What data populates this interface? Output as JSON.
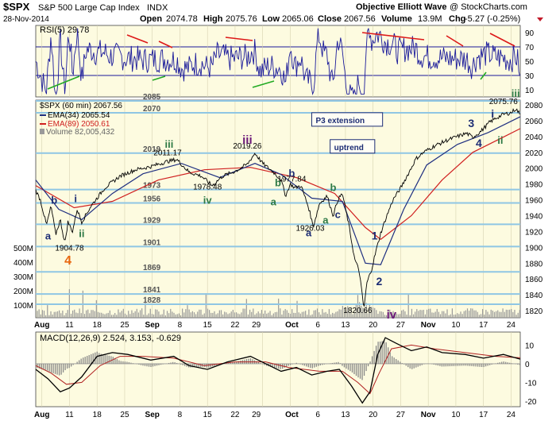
{
  "header": {
    "symbol": "$SPX",
    "name": "S&P 500 Large Cap Index",
    "exchange": "INDX",
    "date": "28-Nov-2014",
    "source": "Objective Elliott Wave",
    "brand": "@ StockCharts.com",
    "open_label": "Open",
    "open": "2074.78",
    "high_label": "High",
    "high": "2075.76",
    "low_label": "Low",
    "low": "2065.06",
    "close_label": "Close",
    "close": "2067.56",
    "volume_label": "Volume",
    "volume": "13.9M",
    "chg_label": "Chg",
    "chg": "-5.27 (-0.25%)"
  },
  "colors": {
    "panel_bg": "#fdfbe0",
    "price": "#000000",
    "ema34": "#1f2f80",
    "ema89": "#d02020",
    "rsi": "#1a1a9a",
    "hline": "#8fc6e4",
    "wave_purple": "#6b1878",
    "wave_navy": "#1d2d74",
    "wave_green": "#2e7a46",
    "wave_orange": "#e8660c",
    "trend_red": "#dd1818",
    "trend_green": "#22aa22"
  },
  "chart_data": [
    {
      "type": "line",
      "panel": "rsi",
      "legend": "RSI(5) 29.78",
      "ylim": [
        0,
        100
      ],
      "ticks": [
        10,
        30,
        50,
        70,
        90
      ],
      "threshold_lines": [
        30,
        70
      ]
    },
    {
      "type": "line",
      "panel": "price",
      "interval": "60 min",
      "ylim": [
        1811,
        2086
      ],
      "y_ticks": [
        1820,
        1840,
        1860,
        1880,
        1900,
        1920,
        1940,
        1960,
        1980,
        2000,
        2020,
        2040,
        2060,
        2080
      ],
      "x_ticks": [
        "Aug",
        "11",
        "18",
        "25",
        "Sep",
        "8",
        "15",
        "22",
        "29",
        "Oct",
        "6",
        "13",
        "20",
        "27",
        "Nov",
        "10",
        "17",
        "24"
      ],
      "legend": {
        "price": "$SPX (60 min) 2067.56",
        "ema34": "EMA(34) 2065.54",
        "ema89": "EMA(89) 2050.61",
        "volume": "Volume 82,005,432"
      },
      "volume_ticks": [
        "500M",
        "400M",
        "300M",
        "200M",
        "100M"
      ],
      "levels": [
        2085,
        2070,
        2019,
        1973,
        1956,
        1929,
        1901,
        1869,
        1841,
        1828
      ],
      "points": [
        {
          "t": 0,
          "v": 1972
        },
        {
          "t": 3,
          "v": 1960
        },
        {
          "t": 7,
          "v": 1928
        },
        {
          "t": 10,
          "v": 1952
        },
        {
          "t": 13,
          "v": 1916
        },
        {
          "t": 16,
          "v": 1935
        },
        {
          "t": 19,
          "v": 1905
        },
        {
          "t": 21,
          "v": 1932
        },
        {
          "t": 24,
          "v": 1920
        },
        {
          "t": 27,
          "v": 1948
        },
        {
          "t": 30,
          "v": 1932
        },
        {
          "t": 36,
          "v": 1952
        },
        {
          "t": 45,
          "v": 1975
        },
        {
          "t": 55,
          "v": 1990
        },
        {
          "t": 65,
          "v": 1998
        },
        {
          "t": 75,
          "v": 2002
        },
        {
          "t": 85,
          "v": 2008
        },
        {
          "t": 92,
          "v": 2011
        },
        {
          "t": 100,
          "v": 1995
        },
        {
          "t": 108,
          "v": 1990
        },
        {
          "t": 115,
          "v": 1978
        },
        {
          "t": 122,
          "v": 1990
        },
        {
          "t": 130,
          "v": 1996
        },
        {
          "t": 138,
          "v": 2005
        },
        {
          "t": 143,
          "v": 2019
        },
        {
          "t": 148,
          "v": 2006
        },
        {
          "t": 155,
          "v": 1995
        },
        {
          "t": 160,
          "v": 1985
        },
        {
          "t": 163,
          "v": 1965
        },
        {
          "t": 166,
          "v": 1980
        },
        {
          "t": 169,
          "v": 1975
        },
        {
          "t": 173,
          "v": 1978
        },
        {
          "t": 178,
          "v": 1950
        },
        {
          "t": 181,
          "v": 1926
        },
        {
          "t": 185,
          "v": 1955
        },
        {
          "t": 190,
          "v": 1965
        },
        {
          "t": 194,
          "v": 1940
        },
        {
          "t": 197,
          "v": 1960
        },
        {
          "t": 200,
          "v": 1968
        },
        {
          "t": 204,
          "v": 1930
        },
        {
          "t": 208,
          "v": 1885
        },
        {
          "t": 211,
          "v": 1870
        },
        {
          "t": 214,
          "v": 1822
        },
        {
          "t": 216,
          "v": 1855
        },
        {
          "t": 219,
          "v": 1872
        },
        {
          "t": 222,
          "v": 1896
        },
        {
          "t": 225,
          "v": 1918
        },
        {
          "t": 229,
          "v": 1940
        },
        {
          "t": 233,
          "v": 1960
        },
        {
          "t": 238,
          "v": 1975
        },
        {
          "t": 243,
          "v": 1993
        },
        {
          "t": 248,
          "v": 2012
        },
        {
          "t": 253,
          "v": 2020
        },
        {
          "t": 260,
          "v": 2028
        },
        {
          "t": 268,
          "v": 2035
        },
        {
          "t": 275,
          "v": 2040
        },
        {
          "t": 281,
          "v": 2044
        },
        {
          "t": 285,
          "v": 2039
        },
        {
          "t": 290,
          "v": 2046
        },
        {
          "t": 296,
          "v": 2058
        },
        {
          "t": 300,
          "v": 2063
        },
        {
          "t": 305,
          "v": 2068
        },
        {
          "t": 310,
          "v": 2070
        },
        {
          "t": 313,
          "v": 2075
        },
        {
          "t": 316,
          "v": 2068
        }
      ],
      "ema34": [
        {
          "t": 0,
          "v": 1985
        },
        {
          "t": 15,
          "v": 1948
        },
        {
          "t": 30,
          "v": 1935
        },
        {
          "t": 50,
          "v": 1968
        },
        {
          "t": 70,
          "v": 1993
        },
        {
          "t": 95,
          "v": 2006
        },
        {
          "t": 120,
          "v": 1988
        },
        {
          "t": 143,
          "v": 2006
        },
        {
          "t": 160,
          "v": 1992
        },
        {
          "t": 180,
          "v": 1962
        },
        {
          "t": 200,
          "v": 1958
        },
        {
          "t": 215,
          "v": 1880
        },
        {
          "t": 225,
          "v": 1878
        },
        {
          "t": 240,
          "v": 1948
        },
        {
          "t": 255,
          "v": 2004
        },
        {
          "t": 275,
          "v": 2030
        },
        {
          "t": 295,
          "v": 2045
        },
        {
          "t": 316,
          "v": 2065
        }
      ],
      "ema89": [
        {
          "t": 0,
          "v": 1978
        },
        {
          "t": 25,
          "v": 1950
        },
        {
          "t": 50,
          "v": 1958
        },
        {
          "t": 80,
          "v": 1985
        },
        {
          "t": 110,
          "v": 1998
        },
        {
          "t": 140,
          "v": 2001
        },
        {
          "t": 170,
          "v": 1988
        },
        {
          "t": 195,
          "v": 1968
        },
        {
          "t": 215,
          "v": 1925
        },
        {
          "t": 225,
          "v": 1910
        },
        {
          "t": 245,
          "v": 1940
        },
        {
          "t": 265,
          "v": 1985
        },
        {
          "t": 285,
          "v": 2020
        },
        {
          "t": 316,
          "v": 2050
        }
      ],
      "price_annotations": [
        {
          "text": "1904.78",
          "t": 22,
          "v": 1896
        },
        {
          "text": "2011.17",
          "t": 86,
          "v": 2016
        },
        {
          "text": "1978.48",
          "t": 112,
          "v": 1973
        },
        {
          "text": "2019.26",
          "t": 138,
          "v": 2025
        },
        {
          "text": "1977.84",
          "t": 167,
          "v": 1983
        },
        {
          "text": "1926.03",
          "t": 179,
          "v": 1921
        },
        {
          "text": "1820.66",
          "t": 210,
          "v": 1817
        },
        {
          "text": "2075.76",
          "t": 305,
          "v": 2081
        }
      ],
      "wave_labels": [
        {
          "text": "b",
          "t": 12,
          "v": 1955,
          "color": "wave_navy",
          "size": 13
        },
        {
          "text": "a",
          "t": 8,
          "v": 1910,
          "color": "wave_navy",
          "size": 13
        },
        {
          "text": "i",
          "t": 26,
          "v": 1957,
          "color": "wave_navy",
          "size": 13
        },
        {
          "text": "ii",
          "t": 30,
          "v": 1913,
          "color": "wave_green",
          "size": 13
        },
        {
          "text": "4",
          "t": 21,
          "v": 1878,
          "color": "wave_orange",
          "size": 16
        },
        {
          "text": "iii",
          "t": 87,
          "v": 2026,
          "color": "wave_green",
          "size": 13
        },
        {
          "text": "iv",
          "t": 112,
          "v": 1955,
          "color": "wave_green",
          "size": 13
        },
        {
          "text": "iii",
          "t": 138,
          "v": 2031,
          "color": "wave_purple",
          "size": 15
        },
        {
          "text": "b",
          "t": 167,
          "v": 1989,
          "color": "wave_navy",
          "size": 13
        },
        {
          "text": "b",
          "t": 158,
          "v": 1977,
          "color": "wave_green",
          "size": 13
        },
        {
          "text": "a",
          "t": 155,
          "v": 1953,
          "color": "wave_green",
          "size": 13
        },
        {
          "text": "a",
          "t": 178,
          "v": 1914,
          "color": "wave_navy",
          "size": 13
        },
        {
          "text": "b",
          "t": 194,
          "v": 1971,
          "color": "wave_green",
          "size": 13
        },
        {
          "text": "a",
          "t": 189,
          "v": 1930,
          "color": "wave_green",
          "size": 13
        },
        {
          "text": "c",
          "t": 197,
          "v": 1937,
          "color": "wave_navy",
          "size": 13
        },
        {
          "text": "1",
          "t": 221,
          "v": 1910,
          "color": "wave_navy",
          "size": 14
        },
        {
          "text": "2",
          "t": 224,
          "v": 1852,
          "color": "wave_navy",
          "size": 14
        },
        {
          "text": "iv",
          "t": 232,
          "v": 1810,
          "color": "wave_purple",
          "size": 15
        },
        {
          "text": "3",
          "t": 284,
          "v": 2052,
          "color": "wave_navy",
          "size": 14
        },
        {
          "text": "4",
          "t": 289,
          "v": 2027,
          "color": "wave_navy",
          "size": 14
        },
        {
          "text": "i",
          "t": 298,
          "v": 2064,
          "color": "wave_navy",
          "size": 14
        },
        {
          "text": "ii",
          "t": 303,
          "v": 2031,
          "color": "wave_green",
          "size": 13
        },
        {
          "text": "iii",
          "t": 313,
          "v": 2090,
          "color": "wave_green",
          "size": 13
        }
      ],
      "boxes": [
        {
          "text": "P3 extension",
          "t": 180,
          "v": 2058
        },
        {
          "text": "uptrend",
          "t": 192,
          "v": 2024
        }
      ]
    },
    {
      "type": "line",
      "panel": "macd",
      "legend": "MACD(12,26,9) 2.524, 3.153, -0.629",
      "ylim": [
        -23,
        17
      ],
      "ticks": [
        10,
        0,
        -10,
        -20
      ],
      "macd": [
        {
          "t": 0,
          "v": -3
        },
        {
          "t": 8,
          "v": -8
        },
        {
          "t": 16,
          "v": -15
        },
        {
          "t": 22,
          "v": -13
        },
        {
          "t": 30,
          "v": -7
        },
        {
          "t": 40,
          "v": 4
        },
        {
          "t": 50,
          "v": 6
        },
        {
          "t": 60,
          "v": 5
        },
        {
          "t": 75,
          "v": 2
        },
        {
          "t": 90,
          "v": 4
        },
        {
          "t": 100,
          "v": -1
        },
        {
          "t": 112,
          "v": -3
        },
        {
          "t": 125,
          "v": 1
        },
        {
          "t": 140,
          "v": 4
        },
        {
          "t": 150,
          "v": 0
        },
        {
          "t": 160,
          "v": -4
        },
        {
          "t": 170,
          "v": -2
        },
        {
          "t": 180,
          "v": -6
        },
        {
          "t": 190,
          "v": -4
        },
        {
          "t": 198,
          "v": -3
        },
        {
          "t": 206,
          "v": -12
        },
        {
          "t": 213,
          "v": -21
        },
        {
          "t": 218,
          "v": -15
        },
        {
          "t": 223,
          "v": 5
        },
        {
          "t": 228,
          "v": 14
        },
        {
          "t": 235,
          "v": 11
        },
        {
          "t": 245,
          "v": 7
        },
        {
          "t": 255,
          "v": 9
        },
        {
          "t": 265,
          "v": 6
        },
        {
          "t": 280,
          "v": 5
        },
        {
          "t": 292,
          "v": 3
        },
        {
          "t": 305,
          "v": 5
        },
        {
          "t": 316,
          "v": 2.5
        }
      ],
      "signal": [
        {
          "t": 0,
          "v": -1
        },
        {
          "t": 10,
          "v": -5
        },
        {
          "t": 20,
          "v": -11
        },
        {
          "t": 30,
          "v": -10
        },
        {
          "t": 42,
          "v": -1
        },
        {
          "t": 55,
          "v": 4
        },
        {
          "t": 70,
          "v": 4
        },
        {
          "t": 90,
          "v": 3
        },
        {
          "t": 110,
          "v": -1
        },
        {
          "t": 130,
          "v": 1
        },
        {
          "t": 150,
          "v": 1
        },
        {
          "t": 165,
          "v": -2
        },
        {
          "t": 185,
          "v": -4
        },
        {
          "t": 200,
          "v": -4
        },
        {
          "t": 210,
          "v": -10
        },
        {
          "t": 218,
          "v": -16
        },
        {
          "t": 224,
          "v": -5
        },
        {
          "t": 232,
          "v": 8
        },
        {
          "t": 245,
          "v": 10
        },
        {
          "t": 260,
          "v": 8
        },
        {
          "t": 280,
          "v": 6
        },
        {
          "t": 300,
          "v": 4
        },
        {
          "t": 316,
          "v": 3.2
        }
      ]
    }
  ]
}
